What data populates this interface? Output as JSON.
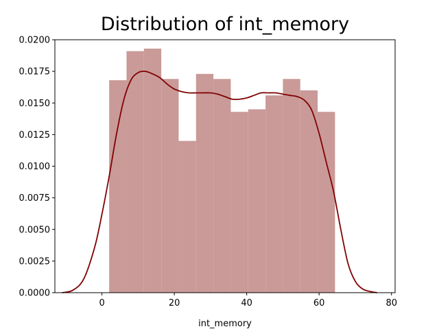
{
  "chart_data": {
    "type": "bar",
    "title": "Distribution of int_memory",
    "xlabel": "int_memory",
    "ylabel": "",
    "xlim": [
      -13,
      81
    ],
    "ylim": [
      0,
      0.02
    ],
    "xticks": [
      0,
      20,
      40,
      60,
      80
    ],
    "yticks": [
      0.0,
      0.0025,
      0.005,
      0.0075,
      0.01,
      0.0125,
      0.015,
      0.0175,
      0.02
    ],
    "xtick_labels": [
      "0",
      "20",
      "40",
      "60",
      "80"
    ],
    "ytick_labels": [
      "0.0000",
      "0.0025",
      "0.0050",
      "0.0075",
      "0.0100",
      "0.0125",
      "0.0150",
      "0.0175",
      "0.0200"
    ],
    "bin_edges": [
      2.0,
      6.8,
      11.6,
      16.4,
      21.2,
      26.0,
      30.8,
      35.6,
      40.4,
      45.2,
      50.0,
      54.8,
      59.6,
      64.4
    ],
    "values": [
      0.0168,
      0.0191,
      0.0193,
      0.0169,
      0.012,
      0.0173,
      0.0169,
      0.0143,
      0.0145,
      0.0156,
      0.0169,
      0.016,
      0.0143
    ],
    "kde": {
      "x": [
        -11,
        -8,
        -5,
        -2,
        0,
        2,
        4,
        6,
        8,
        10,
        12,
        14,
        16,
        18,
        20,
        22,
        24,
        26,
        28,
        30,
        32,
        34,
        36,
        38,
        40,
        42,
        44,
        46,
        48,
        50,
        52,
        54,
        56,
        58,
        60,
        62,
        64,
        66,
        68,
        70,
        72,
        74,
        76
      ],
      "y": [
        0.0,
        0.0002,
        0.0011,
        0.0036,
        0.0062,
        0.0092,
        0.0125,
        0.0152,
        0.0168,
        0.0174,
        0.0175,
        0.0173,
        0.017,
        0.0165,
        0.0161,
        0.0159,
        0.0158,
        0.0158,
        0.0158,
        0.0158,
        0.0157,
        0.0155,
        0.0153,
        0.0153,
        0.0154,
        0.0156,
        0.0158,
        0.0158,
        0.0158,
        0.0157,
        0.0156,
        0.0155,
        0.0152,
        0.0144,
        0.0126,
        0.0103,
        0.008,
        0.005,
        0.0023,
        0.0009,
        0.0003,
        0.0001,
        0.0
      ]
    },
    "colors": {
      "bars": "#c99a98",
      "kde_line": "#800000"
    },
    "grid": false,
    "legend": "none"
  }
}
